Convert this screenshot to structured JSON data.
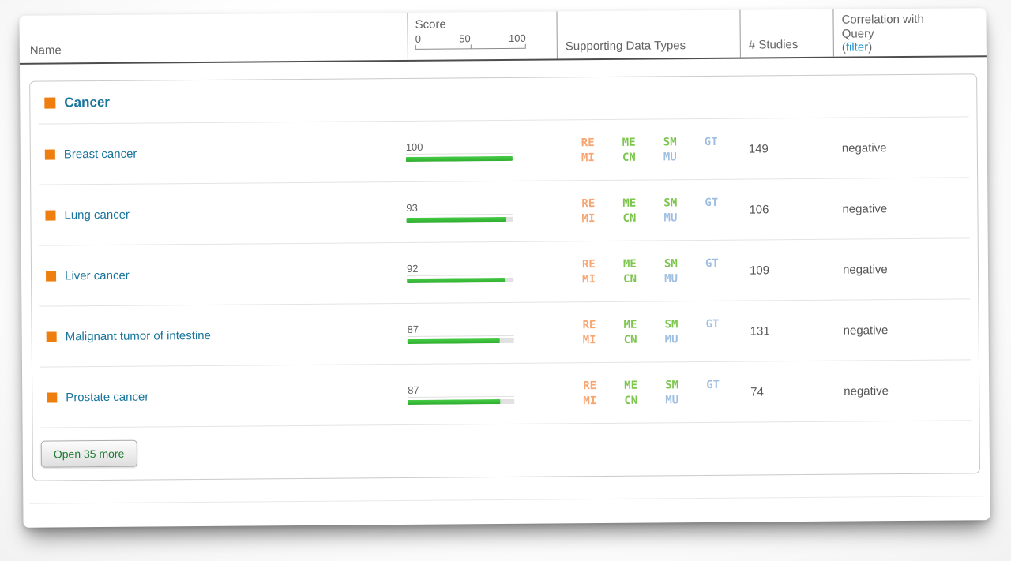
{
  "header": {
    "name_label": "Name",
    "score_label": "Score",
    "score_ticks": [
      "0",
      "50",
      "100"
    ],
    "supporting_label": "Supporting Data Types",
    "studies_label": "# Studies",
    "correlation_label_line1": "Correlation with",
    "correlation_label_line2": "Query",
    "filter_prefix": "(",
    "filter_link_label": "filter",
    "filter_suffix": ")"
  },
  "group_header": {
    "label": "Cancer"
  },
  "badges": [
    {
      "code": "RE",
      "type": "orange"
    },
    {
      "code": "ME",
      "type": "green"
    },
    {
      "code": "SM",
      "type": "green"
    },
    {
      "code": "GT",
      "type": "blue"
    },
    {
      "code": "MI",
      "type": "orange"
    },
    {
      "code": "CN",
      "type": "green"
    },
    {
      "code": "MU",
      "type": "blue"
    }
  ],
  "rows": [
    {
      "name": "Breast cancer",
      "score": 100,
      "studies": "149",
      "correlation": "negative"
    },
    {
      "name": "Lung cancer",
      "score": 93,
      "studies": "106",
      "correlation": "negative"
    },
    {
      "name": "Liver cancer",
      "score": 92,
      "studies": "109",
      "correlation": "negative"
    },
    {
      "name": "Malignant tumor of intestine",
      "score": 87,
      "studies": "131",
      "correlation": "negative"
    },
    {
      "name": "Prostate cancer",
      "score": 87,
      "studies": "74",
      "correlation": "negative"
    }
  ],
  "footer": {
    "open_more_label": "Open 35 more"
  },
  "colors": {
    "accent_teal": "#19759C",
    "orange_square": "#EE7F0E",
    "score_bar_green": "#3DBE3D",
    "badge_orange": "#F8A571",
    "badge_green": "#7DC64E",
    "badge_blue": "#9FBFE2",
    "button_text_green": "#1E7A34",
    "filter_link_blue": "#2196C9"
  }
}
